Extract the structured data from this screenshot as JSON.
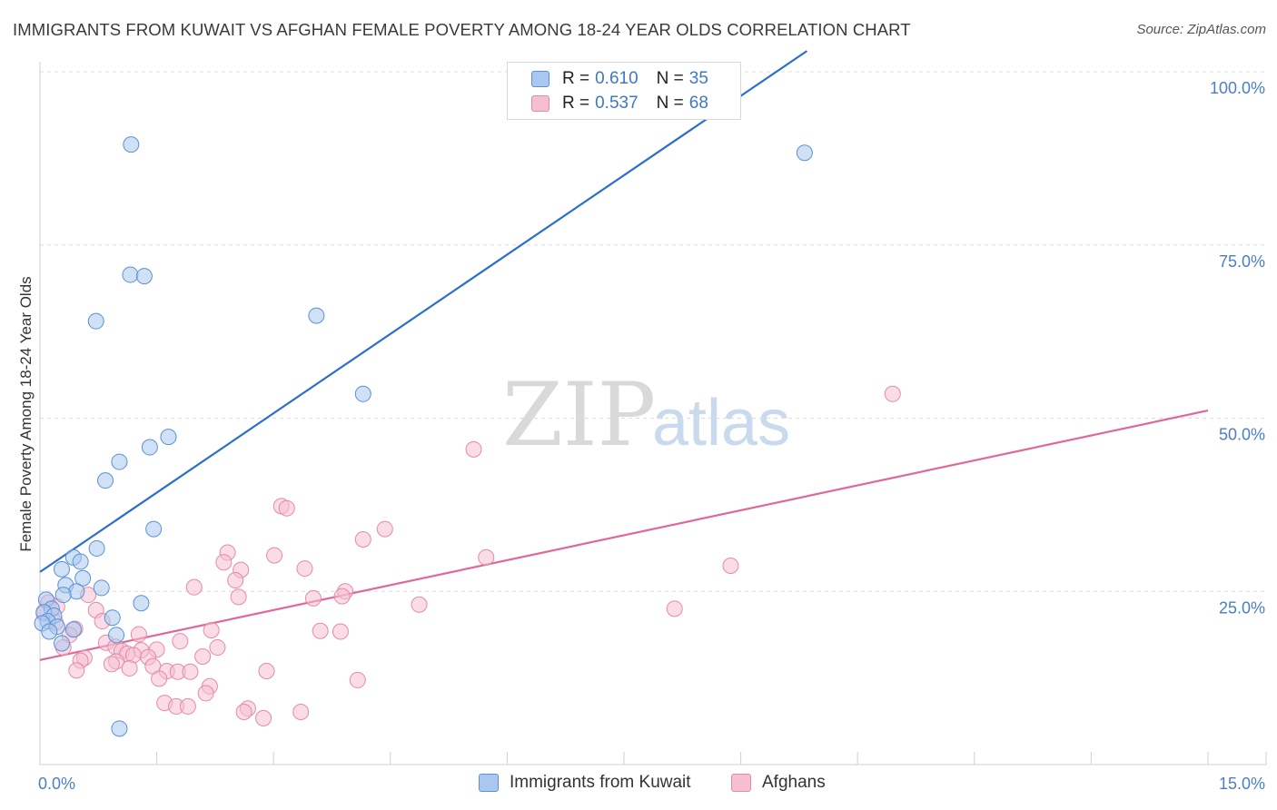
{
  "title": "IMMIGRANTS FROM KUWAIT VS AFGHAN FEMALE POVERTY AMONG 18-24 YEAR OLDS CORRELATION CHART",
  "source": "Source: ZipAtlas.com",
  "watermark": {
    "zip": "ZIP",
    "atlas": "atlas"
  },
  "colors": {
    "blue_fill": "#aac8ef",
    "blue_stroke": "#5b90d6",
    "blue_line": "#2b6fcc",
    "pink_fill": "#f6bfd1",
    "pink_stroke": "#e58aa8",
    "pink_line": "#e0679a",
    "tick": "#4a7fc6",
    "grid": "#dcdcdc"
  },
  "legend": {
    "rows": [
      {
        "r_label": "R =",
        "r_value": "0.610",
        "n_label": "N =",
        "n_value": "35",
        "color": "#aac8ef",
        "stroke": "#5b90d6"
      },
      {
        "r_label": "R =",
        "r_value": "0.537",
        "n_label": "N =",
        "n_value": "68",
        "color": "#f6bfd1",
        "stroke": "#e58aa8"
      }
    ]
  },
  "bottom_legend": [
    {
      "label": "Immigrants from Kuwait",
      "color": "#aac8ef",
      "stroke": "#5b90d6"
    },
    {
      "label": "Afghans",
      "color": "#f6bfd1",
      "stroke": "#e58aa8"
    }
  ],
  "chart_data": {
    "type": "scatter",
    "title": "IMMIGRANTS FROM KUWAIT VS AFGHAN FEMALE POVERTY AMONG 18-24 YEAR OLDS CORRELATION CHART",
    "xlabel": "",
    "ylabel": "Female Poverty Among 18-24 Year Olds",
    "xlim": [
      0,
      15
    ],
    "ylim": [
      0,
      100
    ],
    "x_tick_labels": [
      {
        "value": 0,
        "label": "0.0%"
      },
      {
        "value": 15,
        "label": "15.0%"
      }
    ],
    "y_tick_labels": [
      {
        "value": 25,
        "label": "25.0%"
      },
      {
        "value": 50,
        "label": "50.0%"
      },
      {
        "value": 75,
        "label": "75.0%"
      },
      {
        "value": 100,
        "label": "100.0%"
      }
    ],
    "x_minor_ticks": [
      0,
      1.5,
      3,
      4.5,
      6,
      7.5,
      9,
      10.5,
      12,
      13.5,
      15
    ],
    "grid": true,
    "series": [
      {
        "name": "Immigrants from Kuwait",
        "R": 0.61,
        "N": 35,
        "trend": {
          "x0": 0,
          "y0": 27.8,
          "x1": 9.85,
          "y1": 103
        },
        "points": [
          {
            "x": 1.17,
            "y": 89.5
          },
          {
            "x": 9.82,
            "y": 88.3
          },
          {
            "x": 1.16,
            "y": 70.7
          },
          {
            "x": 1.34,
            "y": 70.5
          },
          {
            "x": 0.72,
            "y": 64.0
          },
          {
            "x": 3.55,
            "y": 64.8
          },
          {
            "x": 4.15,
            "y": 53.5
          },
          {
            "x": 1.65,
            "y": 47.3
          },
          {
            "x": 1.41,
            "y": 45.8
          },
          {
            "x": 1.02,
            "y": 43.7
          },
          {
            "x": 0.84,
            "y": 41.0
          },
          {
            "x": 1.46,
            "y": 34.0
          },
          {
            "x": 0.73,
            "y": 31.2
          },
          {
            "x": 0.43,
            "y": 29.9
          },
          {
            "x": 0.52,
            "y": 29.3
          },
          {
            "x": 0.28,
            "y": 28.2
          },
          {
            "x": 0.55,
            "y": 26.9
          },
          {
            "x": 0.33,
            "y": 25.9
          },
          {
            "x": 0.79,
            "y": 25.5
          },
          {
            "x": 0.47,
            "y": 25.0
          },
          {
            "x": 0.3,
            "y": 24.5
          },
          {
            "x": 1.3,
            "y": 23.3
          },
          {
            "x": 0.08,
            "y": 23.8
          },
          {
            "x": 0.15,
            "y": 22.5
          },
          {
            "x": 0.05,
            "y": 22.0
          },
          {
            "x": 0.18,
            "y": 21.5
          },
          {
            "x": 0.93,
            "y": 21.2
          },
          {
            "x": 0.1,
            "y": 20.7
          },
          {
            "x": 0.03,
            "y": 20.4
          },
          {
            "x": 0.22,
            "y": 19.9
          },
          {
            "x": 0.43,
            "y": 19.5
          },
          {
            "x": 0.12,
            "y": 19.2
          },
          {
            "x": 0.28,
            "y": 17.5
          },
          {
            "x": 0.98,
            "y": 18.7
          },
          {
            "x": 1.02,
            "y": 5.2
          }
        ]
      },
      {
        "name": "Afghans",
        "R": 0.537,
        "N": 68,
        "trend": {
          "x0": 0,
          "y0": 15.1,
          "x1": 15,
          "y1": 51.1
        },
        "points": [
          {
            "x": 10.95,
            "y": 53.5
          },
          {
            "x": 5.57,
            "y": 45.5
          },
          {
            "x": 3.1,
            "y": 37.3
          },
          {
            "x": 3.17,
            "y": 37.0
          },
          {
            "x": 4.43,
            "y": 34.0
          },
          {
            "x": 4.15,
            "y": 32.5
          },
          {
            "x": 2.41,
            "y": 30.6
          },
          {
            "x": 3.01,
            "y": 30.2
          },
          {
            "x": 5.73,
            "y": 29.9
          },
          {
            "x": 2.36,
            "y": 29.2
          },
          {
            "x": 8.87,
            "y": 28.7
          },
          {
            "x": 3.4,
            "y": 28.3
          },
          {
            "x": 2.58,
            "y": 28.1
          },
          {
            "x": 2.51,
            "y": 26.6
          },
          {
            "x": 1.98,
            "y": 25.6
          },
          {
            "x": 3.92,
            "y": 25.0
          },
          {
            "x": 0.62,
            "y": 24.5
          },
          {
            "x": 2.55,
            "y": 24.2
          },
          {
            "x": 3.51,
            "y": 24.0
          },
          {
            "x": 3.88,
            "y": 24.3
          },
          {
            "x": 0.11,
            "y": 23.4
          },
          {
            "x": 4.87,
            "y": 23.1
          },
          {
            "x": 8.15,
            "y": 22.5
          },
          {
            "x": 0.22,
            "y": 22.8
          },
          {
            "x": 0.72,
            "y": 22.3
          },
          {
            "x": 0.05,
            "y": 21.8
          },
          {
            "x": 0.2,
            "y": 20.5
          },
          {
            "x": 0.8,
            "y": 20.7
          },
          {
            "x": 0.45,
            "y": 19.6
          },
          {
            "x": 2.2,
            "y": 19.4
          },
          {
            "x": 3.6,
            "y": 19.3
          },
          {
            "x": 3.86,
            "y": 19.2
          },
          {
            "x": 1.27,
            "y": 18.8
          },
          {
            "x": 0.38,
            "y": 18.7
          },
          {
            "x": 1.8,
            "y": 17.8
          },
          {
            "x": 0.85,
            "y": 17.6
          },
          {
            "x": 0.97,
            "y": 17.0
          },
          {
            "x": 0.3,
            "y": 16.9
          },
          {
            "x": 2.28,
            "y": 16.9
          },
          {
            "x": 1.05,
            "y": 16.4
          },
          {
            "x": 1.3,
            "y": 16.5
          },
          {
            "x": 1.5,
            "y": 16.6
          },
          {
            "x": 1.12,
            "y": 16.0
          },
          {
            "x": 1.2,
            "y": 15.8
          },
          {
            "x": 2.09,
            "y": 15.6
          },
          {
            "x": 1.39,
            "y": 15.5
          },
          {
            "x": 0.57,
            "y": 15.4
          },
          {
            "x": 0.52,
            "y": 15.0
          },
          {
            "x": 0.98,
            "y": 14.9
          },
          {
            "x": 1.45,
            "y": 14.2
          },
          {
            "x": 1.15,
            "y": 13.9
          },
          {
            "x": 0.47,
            "y": 13.6
          },
          {
            "x": 1.63,
            "y": 13.5
          },
          {
            "x": 1.77,
            "y": 13.4
          },
          {
            "x": 1.93,
            "y": 13.4
          },
          {
            "x": 2.91,
            "y": 13.5
          },
          {
            "x": 1.53,
            "y": 12.4
          },
          {
            "x": 4.08,
            "y": 12.2
          },
          {
            "x": 2.18,
            "y": 11.3
          },
          {
            "x": 2.13,
            "y": 10.3
          },
          {
            "x": 1.6,
            "y": 8.9
          },
          {
            "x": 1.75,
            "y": 8.4
          },
          {
            "x": 1.9,
            "y": 8.4
          },
          {
            "x": 2.67,
            "y": 8.1
          },
          {
            "x": 2.62,
            "y": 7.6
          },
          {
            "x": 3.35,
            "y": 7.6
          },
          {
            "x": 2.87,
            "y": 6.7
          },
          {
            "x": 0.92,
            "y": 14.5
          }
        ]
      }
    ]
  }
}
